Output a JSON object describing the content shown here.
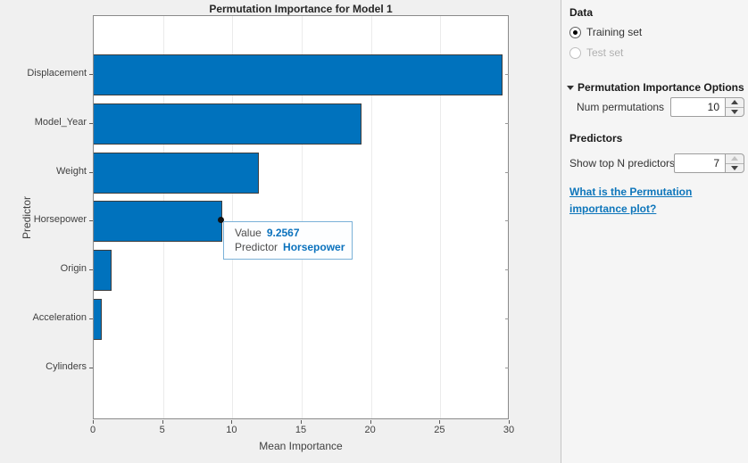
{
  "chart_data": {
    "type": "bar",
    "orientation": "horizontal",
    "title": "Permutation Importance for Model 1",
    "categories": [
      "Displacement",
      "Model_Year",
      "Weight",
      "Horsepower",
      "Origin",
      "Acceleration",
      "Cylinders"
    ],
    "values": [
      29.5,
      19.3,
      11.9,
      9.2567,
      1.3,
      0.6,
      0
    ],
    "xlabel": "Mean Importance",
    "ylabel": "Predictor",
    "xlim": [
      0,
      30
    ],
    "xticks": [
      0,
      5,
      10,
      15,
      20,
      25,
      30
    ],
    "bar_color": "#0072BD",
    "grid": true,
    "legend": "none"
  },
  "datatip": {
    "value_label": "Value",
    "value": "9.2567",
    "predictor_label": "Predictor",
    "predictor": "Horsepower"
  },
  "panel": {
    "data_section": {
      "title": "Data",
      "options": [
        {
          "label": "Training set",
          "selected": true,
          "enabled": true
        },
        {
          "label": "Test set",
          "selected": false,
          "enabled": false
        }
      ]
    },
    "options_section": {
      "title": "Permutation Importance Options",
      "num_permutations_label": "Num permutations",
      "num_permutations_value": "10"
    },
    "predictors_section": {
      "title": "Predictors",
      "show_top_label": "Show top N predictors",
      "show_top_value": "7"
    },
    "help_link": "What is the Permutation importance plot?"
  }
}
